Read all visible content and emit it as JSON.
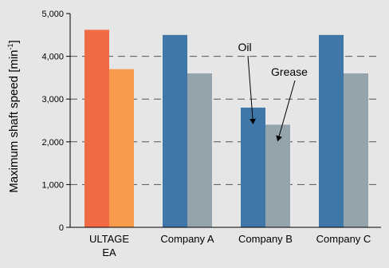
{
  "chart_data": {
    "type": "bar",
    "ylabel": "Maximum shaft speed [min",
    "ylabel_superscript": "-1",
    "ylabel_suffix": "]",
    "ylim": [
      0,
      5000
    ],
    "yticks": [
      "0",
      "1,000",
      "2,000",
      "3,000",
      "4,000",
      "5,000"
    ],
    "grid": "dashed horizontal",
    "categories": [
      {
        "line1": "ULTAGE",
        "line2": "EA"
      },
      {
        "line1": "Company A",
        "line2": ""
      },
      {
        "line1": "Company B",
        "line2": ""
      },
      {
        "line1": "Company C",
        "line2": ""
      }
    ],
    "series": [
      {
        "name": "Oil",
        "values": [
          4620,
          4500,
          2800,
          4500
        ]
      },
      {
        "name": "Grease",
        "values": [
          3700,
          3600,
          2400,
          3600
        ]
      }
    ],
    "bar_colors": [
      [
        "#f26a44",
        "#f79a4c"
      ],
      [
        "#3f77a9",
        "#95a3ad"
      ],
      [
        "#3f77a9",
        "#95a3ad"
      ],
      [
        "#3f77a9",
        "#95a3ad"
      ]
    ],
    "annotations": [
      {
        "text": "Oil",
        "category": "Company B",
        "series": "Oil"
      },
      {
        "text": "Grease",
        "category": "Company B",
        "series": "Grease"
      }
    ],
    "colors": {
      "background": "#e6e6e6",
      "axis": "#000000",
      "grid": "#555555"
    }
  }
}
